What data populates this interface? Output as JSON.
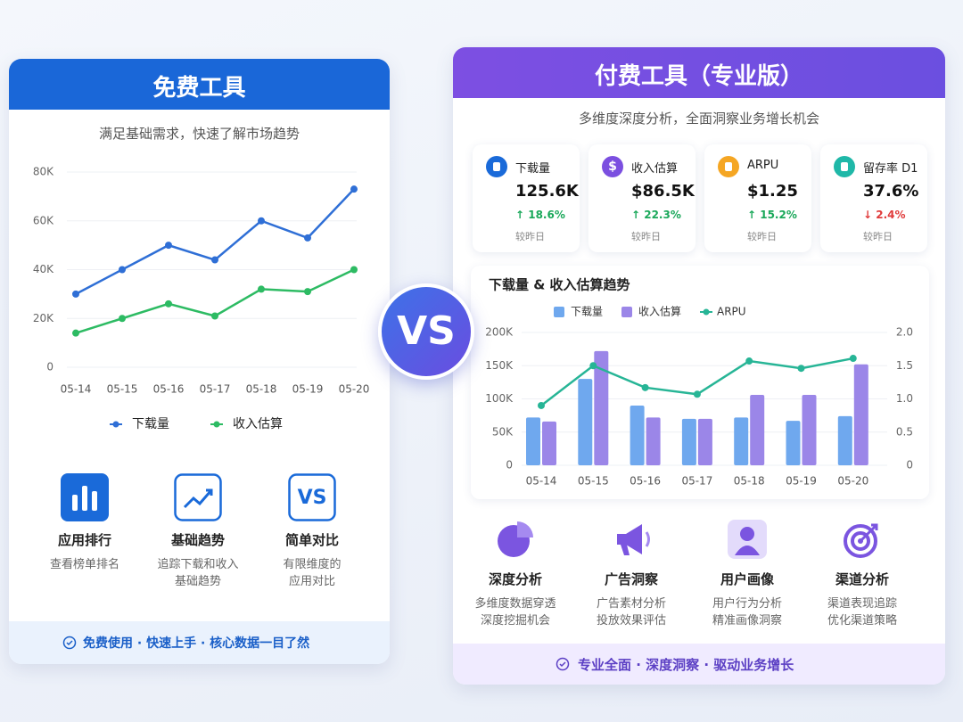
{
  "free": {
    "title": "免费工具",
    "subtitle": "满足基础需求，快速了解市场趋势",
    "features": [
      {
        "title": "应用排行",
        "desc": [
          "查看榜单排名"
        ]
      },
      {
        "title": "基础趋势",
        "desc": [
          "追踪下载和收入",
          "基础趋势"
        ]
      },
      {
        "title": "简单对比",
        "desc": [
          "有限维度的",
          "应用对比"
        ],
        "icon_label": "VS"
      }
    ],
    "footer": "免费使用 · 快速上手 · 核心数据一目了然"
  },
  "vs": "VS",
  "pro": {
    "title": "付费工具（专业版）",
    "subtitle": "多维度深度分析，全面洞察业务增长机会",
    "kpis": [
      {
        "label": "下载量",
        "value": "125.6K",
        "change": "↑ 18.6%",
        "color": "#1aa85a",
        "compare": "较昨日"
      },
      {
        "label": "收入估算",
        "value": "$86.5K",
        "change": "↑ 22.3%",
        "color": "#1aa85a",
        "compare": "较昨日",
        "icon_label": "$"
      },
      {
        "label": "ARPU",
        "value": "$1.25",
        "change": "↑ 15.2%",
        "color": "#1aa85a",
        "compare": "较昨日"
      },
      {
        "label": "留存率 D1",
        "value": "37.6%",
        "change": "↓ 2.4%",
        "color": "#e03b3b",
        "compare": "较昨日"
      }
    ],
    "features": [
      {
        "title": "深度分析",
        "desc": [
          "多维度数据穿透",
          "深度挖掘机会"
        ]
      },
      {
        "title": "广告洞察",
        "desc": [
          "广告素材分析",
          "投放效果评估"
        ]
      },
      {
        "title": "用户画像",
        "desc": [
          "用户行为分析",
          "精准画像洞察"
        ]
      },
      {
        "title": "渠道分析",
        "desc": [
          "渠道表现追踪",
          "优化渠道策略"
        ]
      }
    ],
    "footer": "专业全面 · 深度洞察 · 驱动业务增长"
  },
  "chart_data": [
    {
      "type": "line",
      "categories": [
        "05-14",
        "05-15",
        "05-16",
        "05-17",
        "05-18",
        "05-19",
        "05-20"
      ],
      "series": [
        {
          "name": "下载量",
          "color": "#2f6fd6",
          "values": [
            30000,
            40000,
            50000,
            44000,
            60000,
            53000,
            73000
          ]
        },
        {
          "name": "收入估算",
          "color": "#2dbb63",
          "values": [
            14000,
            20000,
            26000,
            21000,
            32000,
            31000,
            40000
          ]
        }
      ],
      "ylim": [
        0,
        80000
      ],
      "yticks": [
        0,
        {
          "value": 20000,
          "label": "20K"
        },
        {
          "value": 40000,
          "label": "40K"
        },
        {
          "value": 60000,
          "label": "60K"
        },
        {
          "value": 80000,
          "label": "80K"
        }
      ],
      "grid": true,
      "legend": "bottom"
    },
    {
      "type": "combo",
      "title": "下载量 & 收入估算趋势",
      "categories": [
        "05-14",
        "05-15",
        "05-16",
        "05-17",
        "05-18",
        "05-19",
        "05-20"
      ],
      "series": [
        {
          "name": "下载量",
          "type": "bar",
          "color": "#6fa8ee",
          "values": [
            72000,
            130000,
            90000,
            70000,
            72000,
            67000,
            74000
          ]
        },
        {
          "name": "收入估算",
          "type": "bar",
          "color": "#9b86e8",
          "values": [
            66000,
            172000,
            72000,
            70000,
            106000,
            106000,
            152000
          ]
        },
        {
          "name": "ARPU",
          "type": "line",
          "axis": "y2",
          "color": "#27b596",
          "values": [
            0.9,
            1.5,
            1.17,
            1.07,
            1.57,
            1.46,
            1.61
          ]
        }
      ],
      "ylim": [
        0,
        200000
      ],
      "yticks": [
        0,
        {
          "value": 50000,
          "label": "50K"
        },
        {
          "value": 100000,
          "label": "100K"
        },
        {
          "value": 150000,
          "label": "150K"
        },
        {
          "value": 200000,
          "label": "200K"
        }
      ],
      "y2lim": [
        0,
        2
      ],
      "y2ticks": [
        0,
        0.5,
        {
          "value": 1,
          "label": "1.0"
        },
        1.5,
        {
          "value": 2,
          "label": "2.0"
        }
      ],
      "grid": true,
      "legend": "top"
    }
  ]
}
